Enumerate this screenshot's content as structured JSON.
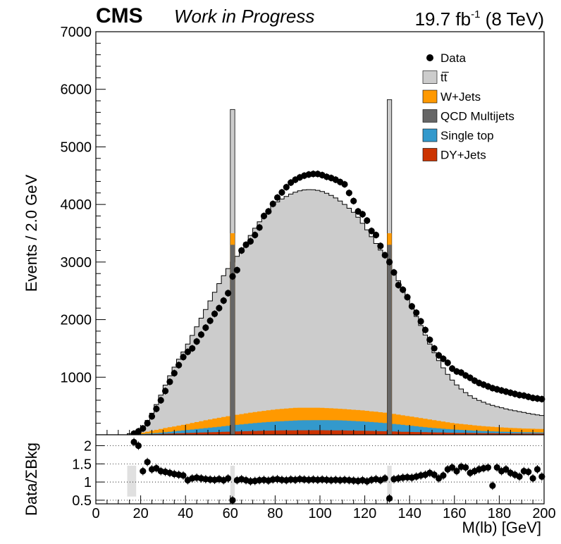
{
  "header": {
    "cms": "CMS",
    "wip": "Work in Progress",
    "lumi_value": "19.7 fb",
    "lumi_exp": "-1",
    "lumi_energy": " (8 TeV)"
  },
  "colors": {
    "tt": "#cccccc",
    "wjets": "#ff9900",
    "qcd": "#666666",
    "singletop": "#3399cc",
    "dyjets": "#cc3300",
    "data": "#000000"
  },
  "chart_data": {
    "type": "bar",
    "stacked": true,
    "xlabel": "M(lb) [GeV]",
    "ylabel": "Events / 2.0 GeV",
    "xlim": [
      0,
      200
    ],
    "ylim": [
      0,
      7000
    ],
    "yticks": [
      1000,
      2000,
      3000,
      4000,
      5000,
      6000,
      7000
    ],
    "xticks": [
      0,
      20,
      40,
      60,
      80,
      100,
      120,
      140,
      160,
      180,
      200
    ],
    "legend_position": "top-right",
    "legend": [
      {
        "key": "data",
        "label": "Data",
        "marker": "point"
      },
      {
        "key": "tt",
        "label": "tt̅",
        "marker": "box"
      },
      {
        "key": "wjets",
        "label": "W+Jets",
        "marker": "box"
      },
      {
        "key": "qcd",
        "label": "QCD Multijets",
        "marker": "box"
      },
      {
        "key": "singletop",
        "label": "Single top",
        "marker": "box"
      },
      {
        "key": "dyjets",
        "label": "DY+Jets",
        "marker": "box"
      }
    ],
    "total_curve": [
      [
        14,
        0
      ],
      [
        16,
        40
      ],
      [
        20,
        100
      ],
      [
        24,
        300
      ],
      [
        28,
        600
      ],
      [
        32,
        950
      ],
      [
        36,
        1250
      ],
      [
        40,
        1500
      ],
      [
        44,
        1800
      ],
      [
        48,
        2100
      ],
      [
        52,
        2400
      ],
      [
        56,
        2700
      ],
      [
        60,
        2950
      ],
      [
        64,
        3150
      ],
      [
        68,
        3400
      ],
      [
        72,
        3650
      ],
      [
        76,
        3850
      ],
      [
        80,
        4020
      ],
      [
        84,
        4120
      ],
      [
        88,
        4200
      ],
      [
        92,
        4250
      ],
      [
        96,
        4260
      ],
      [
        100,
        4240
      ],
      [
        104,
        4180
      ],
      [
        108,
        4090
      ],
      [
        112,
        3970
      ],
      [
        116,
        3830
      ],
      [
        120,
        3620
      ],
      [
        124,
        3380
      ],
      [
        128,
        3150
      ],
      [
        132,
        2900
      ],
      [
        136,
        2600
      ],
      [
        140,
        2280
      ],
      [
        144,
        1980
      ],
      [
        148,
        1650
      ],
      [
        152,
        1350
      ],
      [
        156,
        1100
      ],
      [
        160,
        900
      ],
      [
        164,
        760
      ],
      [
        168,
        650
      ],
      [
        172,
        580
      ],
      [
        176,
        520
      ],
      [
        180,
        480
      ],
      [
        184,
        440
      ],
      [
        188,
        410
      ],
      [
        192,
        380
      ],
      [
        196,
        350
      ],
      [
        200,
        330
      ]
    ],
    "wjets_top": [
      [
        14,
        0
      ],
      [
        20,
        30
      ],
      [
        30,
        110
      ],
      [
        40,
        180
      ],
      [
        50,
        260
      ],
      [
        60,
        330
      ],
      [
        70,
        390
      ],
      [
        80,
        440
      ],
      [
        90,
        470
      ],
      [
        100,
        470
      ],
      [
        110,
        450
      ],
      [
        120,
        420
      ],
      [
        130,
        380
      ],
      [
        140,
        320
      ],
      [
        150,
        260
      ],
      [
        160,
        200
      ],
      [
        170,
        160
      ],
      [
        180,
        130
      ],
      [
        190,
        110
      ],
      [
        200,
        100
      ]
    ],
    "singletop_top": [
      [
        14,
        0
      ],
      [
        20,
        10
      ],
      [
        30,
        40
      ],
      [
        40,
        80
      ],
      [
        50,
        120
      ],
      [
        60,
        160
      ],
      [
        70,
        200
      ],
      [
        80,
        230
      ],
      [
        90,
        250
      ],
      [
        100,
        255
      ],
      [
        110,
        250
      ],
      [
        120,
        230
      ],
      [
        130,
        200
      ],
      [
        140,
        160
      ],
      [
        150,
        120
      ],
      [
        160,
        90
      ],
      [
        170,
        70
      ],
      [
        180,
        55
      ],
      [
        190,
        45
      ],
      [
        200,
        40
      ]
    ],
    "dyjets_top": [
      [
        14,
        0
      ],
      [
        20,
        5
      ],
      [
        40,
        30
      ],
      [
        60,
        55
      ],
      [
        80,
        75
      ],
      [
        100,
        80
      ],
      [
        120,
        70
      ],
      [
        140,
        50
      ],
      [
        160,
        35
      ],
      [
        180,
        25
      ],
      [
        200,
        20
      ]
    ],
    "spikes": [
      {
        "x": 61,
        "tt": 5650,
        "wjets": 3500,
        "qcd": 3300
      },
      {
        "x": 131,
        "tt": 5820,
        "wjets": 3500,
        "qcd": 3300
      }
    ],
    "data_points": [
      [
        17,
        20
      ],
      [
        19,
        60
      ],
      [
        21,
        110
      ],
      [
        23,
        200
      ],
      [
        25,
        320
      ],
      [
        27,
        450
      ],
      [
        29,
        600
      ],
      [
        31,
        760
      ],
      [
        33,
        920
      ],
      [
        35,
        1070
      ],
      [
        37,
        1210
      ],
      [
        39,
        1350
      ],
      [
        41,
        1440
      ],
      [
        43,
        1500
      ],
      [
        45,
        1620
      ],
      [
        47,
        1740
      ],
      [
        49,
        1860
      ],
      [
        51,
        1980
      ],
      [
        53,
        2100
      ],
      [
        55,
        2200
      ],
      [
        57,
        2330
      ],
      [
        59,
        2460
      ],
      [
        61,
        2750
      ],
      [
        63,
        2860
      ],
      [
        65,
        3200
      ],
      [
        67,
        3300
      ],
      [
        69,
        3360
      ],
      [
        71,
        3470
      ],
      [
        73,
        3600
      ],
      [
        75,
        3800
      ],
      [
        77,
        3880
      ],
      [
        79,
        4010
      ],
      [
        81,
        4120
      ],
      [
        83,
        4210
      ],
      [
        85,
        4300
      ],
      [
        87,
        4380
      ],
      [
        89,
        4430
      ],
      [
        91,
        4470
      ],
      [
        93,
        4500
      ],
      [
        95,
        4520
      ],
      [
        97,
        4530
      ],
      [
        99,
        4530
      ],
      [
        101,
        4510
      ],
      [
        103,
        4480
      ],
      [
        105,
        4460
      ],
      [
        107,
        4430
      ],
      [
        109,
        4390
      ],
      [
        111,
        4350
      ],
      [
        113,
        4200
      ],
      [
        115,
        4060
      ],
      [
        117,
        3880
      ],
      [
        119,
        3830
      ],
      [
        121,
        3720
      ],
      [
        123,
        3540
      ],
      [
        125,
        3470
      ],
      [
        127,
        3280
      ],
      [
        129,
        3120
      ],
      [
        131,
        3000
      ],
      [
        133,
        2820
      ],
      [
        135,
        2600
      ],
      [
        137,
        2520
      ],
      [
        139,
        2390
      ],
      [
        141,
        2230
      ],
      [
        143,
        2120
      ],
      [
        145,
        1970
      ],
      [
        147,
        1820
      ],
      [
        149,
        1650
      ],
      [
        151,
        1500
      ],
      [
        153,
        1380
      ],
      [
        155,
        1320
      ],
      [
        157,
        1250
      ],
      [
        159,
        1150
      ],
      [
        161,
        1100
      ],
      [
        163,
        1080
      ],
      [
        165,
        1030
      ],
      [
        167,
        990
      ],
      [
        169,
        940
      ],
      [
        171,
        900
      ],
      [
        173,
        870
      ],
      [
        175,
        840
      ],
      [
        177,
        810
      ],
      [
        179,
        790
      ],
      [
        181,
        770
      ],
      [
        183,
        750
      ],
      [
        185,
        730
      ],
      [
        187,
        710
      ],
      [
        189,
        690
      ],
      [
        191,
        680
      ],
      [
        193,
        660
      ],
      [
        195,
        640
      ],
      [
        197,
        630
      ],
      [
        199,
        620
      ]
    ],
    "ratio": {
      "ylabel": "Data/ΣBkg",
      "ylim": [
        0.4,
        2.3
      ],
      "yticks": [
        {
          "value": 0.5,
          "label": "0.5"
        },
        {
          "value": 1,
          "label": "1"
        },
        {
          "value": 1.5,
          "label": "1.5"
        },
        {
          "value": 2,
          "label": "2"
        }
      ],
      "points": [
        [
          17,
          2.1
        ],
        [
          19,
          2.0
        ],
        [
          21,
          1.3
        ],
        [
          23,
          1.55
        ],
        [
          25,
          1.35
        ],
        [
          27,
          1.38
        ],
        [
          29,
          1.3
        ],
        [
          31,
          1.28
        ],
        [
          33,
          1.25
        ],
        [
          35,
          1.22
        ],
        [
          37,
          1.2
        ],
        [
          39,
          1.18
        ],
        [
          41,
          1.05
        ],
        [
          43,
          1.1
        ],
        [
          45,
          1.12
        ],
        [
          47,
          1.1
        ],
        [
          49,
          1.08
        ],
        [
          51,
          1.07
        ],
        [
          53,
          1.06
        ],
        [
          55,
          1.08
        ],
        [
          57,
          1.05
        ],
        [
          59,
          1.1
        ],
        [
          61,
          0.5
        ],
        [
          63,
          1.05
        ],
        [
          65,
          1.08
        ],
        [
          67,
          1.05
        ],
        [
          69,
          1.02
        ],
        [
          71,
          1.03
        ],
        [
          73,
          1.05
        ],
        [
          75,
          1.06
        ],
        [
          77,
          1.04
        ],
        [
          79,
          1.07
        ],
        [
          81,
          1.08
        ],
        [
          83,
          1.06
        ],
        [
          85,
          1.05
        ],
        [
          87,
          1.07
        ],
        [
          89,
          1.06
        ],
        [
          91,
          1.08
        ],
        [
          93,
          1.07
        ],
        [
          95,
          1.06
        ],
        [
          97,
          1.07
        ],
        [
          99,
          1.06
        ],
        [
          101,
          1.07
        ],
        [
          103,
          1.06
        ],
        [
          105,
          1.05
        ],
        [
          107,
          1.06
        ],
        [
          109,
          1.05
        ],
        [
          111,
          1.06
        ],
        [
          113,
          1.05
        ],
        [
          115,
          1.04
        ],
        [
          117,
          1.03
        ],
        [
          119,
          1.05
        ],
        [
          121,
          1.02
        ],
        [
          123,
          1.06
        ],
        [
          125,
          1.08
        ],
        [
          127,
          1.05
        ],
        [
          129,
          1.1
        ],
        [
          131,
          0.55
        ],
        [
          133,
          1.08
        ],
        [
          135,
          1.1
        ],
        [
          137,
          1.12
        ],
        [
          139,
          1.13
        ],
        [
          141,
          1.12
        ],
        [
          143,
          1.15
        ],
        [
          145,
          1.18
        ],
        [
          147,
          1.2
        ],
        [
          149,
          1.25
        ],
        [
          151,
          1.2
        ],
        [
          153,
          1.1
        ],
        [
          155,
          1.18
        ],
        [
          157,
          1.35
        ],
        [
          159,
          1.4
        ],
        [
          161,
          1.3
        ],
        [
          163,
          1.42
        ],
        [
          165,
          1.4
        ],
        [
          167,
          1.25
        ],
        [
          169,
          1.3
        ],
        [
          171,
          1.35
        ],
        [
          173,
          1.38
        ],
        [
          175,
          1.4
        ],
        [
          177,
          0.9
        ],
        [
          179,
          1.4
        ],
        [
          181,
          1.3
        ],
        [
          183,
          1.35
        ],
        [
          185,
          1.25
        ],
        [
          187,
          1.2
        ],
        [
          189,
          1.15
        ],
        [
          191,
          1.3
        ],
        [
          193,
          1.28
        ],
        [
          195,
          1.1
        ],
        [
          197,
          1.35
        ],
        [
          199,
          1.15
        ]
      ]
    }
  }
}
